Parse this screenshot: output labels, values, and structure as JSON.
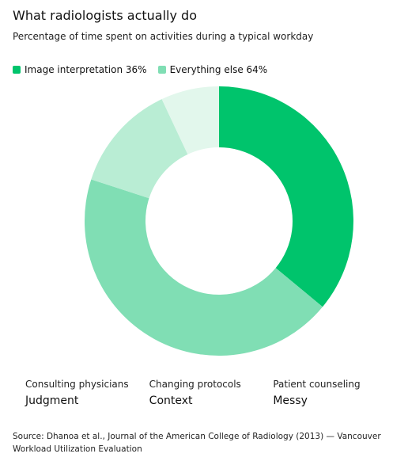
{
  "chart_data": {
    "type": "donut",
    "title": "What radiologists actually do",
    "subtitle": "Percentage of time spent on activities during a typical workday",
    "values": [
      36,
      44,
      13,
      7
    ],
    "colors": [
      "#00c46c",
      "#80deb4",
      "#b9edd4",
      "#e2f7ec"
    ],
    "legend": [
      {
        "label": "Image interpretation 36%",
        "color": "#00c46c"
      },
      {
        "label": "Everything else 64%",
        "color": "#80deb4"
      }
    ]
  },
  "notes": [
    {
      "label": "Consulting physicians",
      "value": "Judgment"
    },
    {
      "label": "Changing protocols",
      "value": "Context"
    },
    {
      "label": "Patient counseling",
      "value": "Messy"
    }
  ],
  "source": "Source: Dhanoa et al., Journal of the American College of Radiology (2013) — Vancouver Workload Utilization Evaluation"
}
